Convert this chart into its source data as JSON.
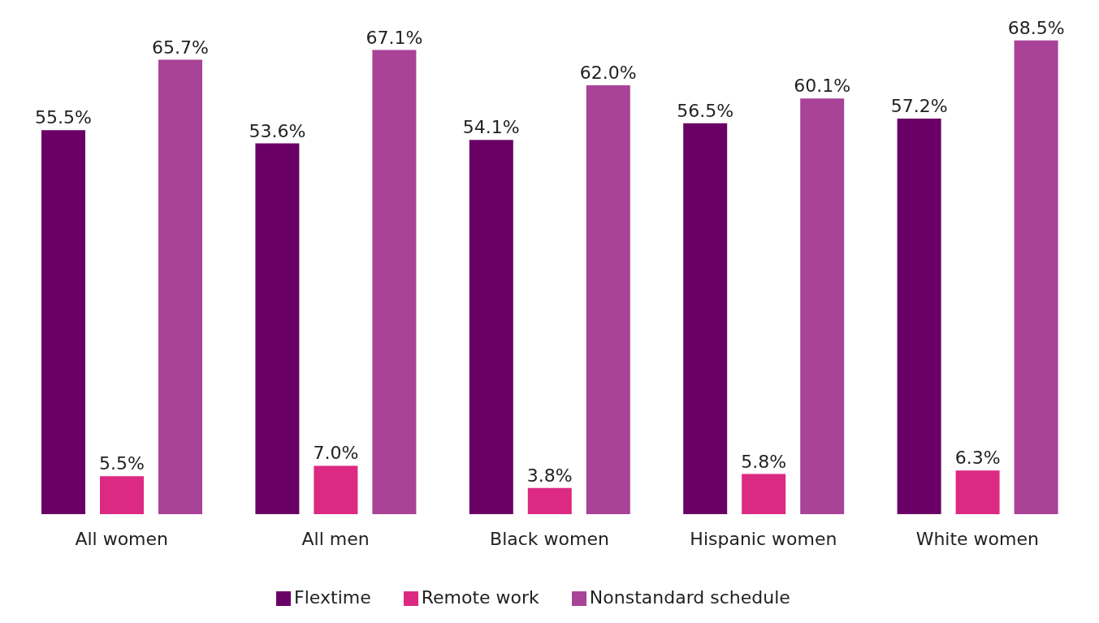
{
  "chart_data": {
    "type": "bar",
    "categories": [
      "All women",
      "All men",
      "Black women",
      "Hispanic women",
      "White women"
    ],
    "series": [
      {
        "name": "Flextime",
        "color": "#6a0066",
        "values": [
          55.5,
          53.6,
          54.1,
          56.5,
          57.2
        ],
        "value_labels": [
          "55.5%",
          "53.6%",
          "54.1%",
          "56.5%",
          "57.2%"
        ]
      },
      {
        "name": "Remote work",
        "color": "#dc2a82",
        "values": [
          5.5,
          7.0,
          3.8,
          5.8,
          6.3
        ],
        "value_labels": [
          "5.5%",
          "7.0%",
          "3.8%",
          "5.8%",
          "6.3%"
        ]
      },
      {
        "name": "Nonstandard schedule",
        "color": "#a94397",
        "values": [
          65.7,
          67.1,
          62.0,
          60.1,
          68.5
        ],
        "value_labels": [
          "65.7%",
          "67.1%",
          "62.0%",
          "60.1%",
          "68.5%"
        ]
      }
    ],
    "grid": false,
    "legend": "bottom"
  }
}
